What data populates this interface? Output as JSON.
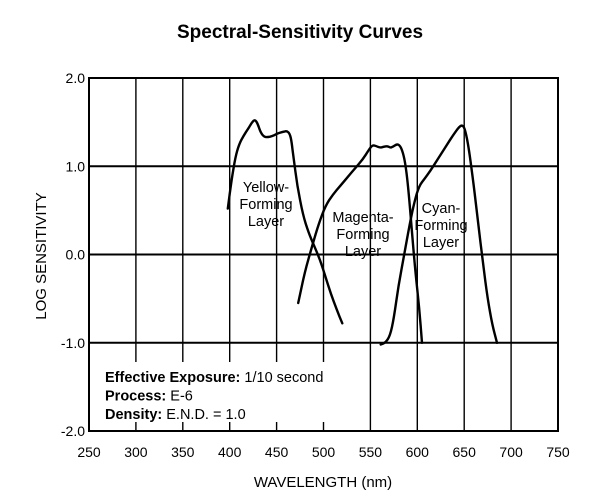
{
  "chart_data": {
    "type": "line",
    "title": "Spectral-Sensitivity Curves",
    "xlabel": "WAVELENGTH (nm)",
    "ylabel": "LOG SENSITIVITY",
    "xlim": [
      250,
      750
    ],
    "ylim": [
      -2.0,
      2.0
    ],
    "x_ticks": [
      "250",
      "300",
      "350",
      "400",
      "450",
      "500",
      "550",
      "600",
      "650",
      "700",
      "750"
    ],
    "y_ticks": [
      "2.0",
      "1.0",
      "0.0",
      "-1.0",
      "-2.0"
    ],
    "grid": true,
    "series": [
      {
        "name": "Yellow-Forming Layer",
        "label_lines": [
          "Yellow-",
          "Forming",
          "Layer"
        ],
        "points": [
          [
            398,
            0.52
          ],
          [
            402,
            0.85
          ],
          [
            406,
            1.1
          ],
          [
            410,
            1.25
          ],
          [
            415,
            1.35
          ],
          [
            420,
            1.43
          ],
          [
            424,
            1.5
          ],
          [
            427,
            1.53
          ],
          [
            430,
            1.48
          ],
          [
            433,
            1.38
          ],
          [
            437,
            1.33
          ],
          [
            441,
            1.33
          ],
          [
            445,
            1.34
          ],
          [
            449,
            1.36
          ],
          [
            453,
            1.38
          ],
          [
            457,
            1.39
          ],
          [
            461,
            1.4
          ],
          [
            464,
            1.37
          ],
          [
            466,
            1.28
          ],
          [
            468,
            1.1
          ],
          [
            472,
            0.78
          ],
          [
            478,
            0.45
          ],
          [
            484,
            0.25
          ],
          [
            490,
            0.1
          ],
          [
            496,
            -0.05
          ],
          [
            502,
            -0.25
          ],
          [
            508,
            -0.45
          ],
          [
            514,
            -0.62
          ],
          [
            520,
            -0.78
          ]
        ]
      },
      {
        "name": "Magenta-Forming Layer",
        "label_lines": [
          "Magenta-",
          "Forming",
          "Layer"
        ],
        "points": [
          [
            473,
            -0.55
          ],
          [
            480,
            -0.2
          ],
          [
            488,
            0.1
          ],
          [
            495,
            0.35
          ],
          [
            502,
            0.55
          ],
          [
            510,
            0.68
          ],
          [
            518,
            0.78
          ],
          [
            526,
            0.88
          ],
          [
            534,
            0.98
          ],
          [
            542,
            1.08
          ],
          [
            548,
            1.18
          ],
          [
            552,
            1.24
          ],
          [
            556,
            1.23
          ],
          [
            560,
            1.21
          ],
          [
            564,
            1.22
          ],
          [
            568,
            1.23
          ],
          [
            571,
            1.21
          ],
          [
            574,
            1.22
          ],
          [
            578,
            1.25
          ],
          [
            581,
            1.24
          ],
          [
            584,
            1.18
          ],
          [
            587,
            1.05
          ],
          [
            590,
            0.8
          ],
          [
            594,
            0.3
          ],
          [
            598,
            -0.2
          ],
          [
            602,
            -0.6
          ],
          [
            605,
            -1.0
          ]
        ]
      },
      {
        "name": "Cyan-Forming Layer",
        "label_lines": [
          "Cyan-",
          "Forming",
          "Layer"
        ],
        "points": [
          [
            561,
            -1.02
          ],
          [
            566,
            -1.0
          ],
          [
            571,
            -0.92
          ],
          [
            575,
            -0.72
          ],
          [
            580,
            -0.35
          ],
          [
            586,
            0.0
          ],
          [
            592,
            0.35
          ],
          [
            597,
            0.6
          ],
          [
            602,
            0.78
          ],
          [
            608,
            0.86
          ],
          [
            614,
            0.95
          ],
          [
            620,
            1.05
          ],
          [
            626,
            1.15
          ],
          [
            632,
            1.25
          ],
          [
            638,
            1.35
          ],
          [
            644,
            1.44
          ],
          [
            648,
            1.47
          ],
          [
            651,
            1.42
          ],
          [
            655,
            1.2
          ],
          [
            660,
            0.8
          ],
          [
            665,
            0.35
          ],
          [
            670,
            -0.1
          ],
          [
            675,
            -0.5
          ],
          [
            680,
            -0.8
          ],
          [
            685,
            -1.0
          ]
        ]
      }
    ],
    "annotation": {
      "lines": [
        {
          "label": "Effective Exposure:",
          "value": "1/10 second"
        },
        {
          "label": "Process:",
          "value": "E-6"
        },
        {
          "label": "Density:",
          "value": "E.N.D. = 1.0"
        }
      ]
    }
  }
}
